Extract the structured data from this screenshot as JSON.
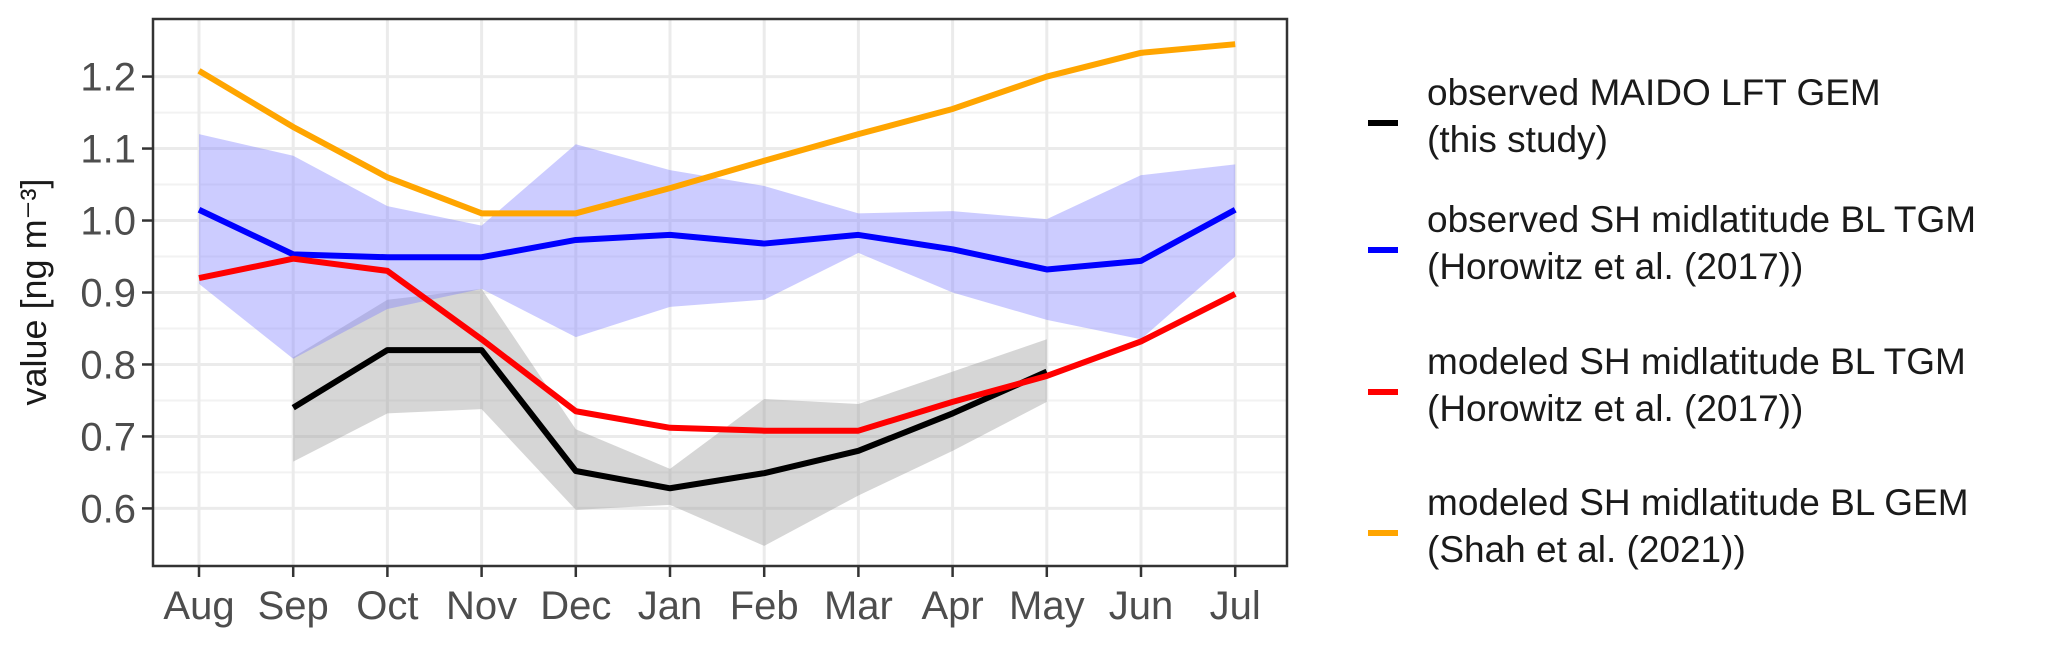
{
  "chart_data": {
    "type": "line",
    "x": [
      "Aug",
      "Sep",
      "Oct",
      "Nov",
      "Dec",
      "Jan",
      "Feb",
      "Mar",
      "Apr",
      "May",
      "Jun",
      "Jul"
    ],
    "ylabel": "value [ng m⁻³]",
    "ylim": [
      0.52,
      1.28
    ],
    "yticks": [
      0.6,
      0.7,
      0.8,
      0.9,
      1.0,
      1.1,
      1.2
    ],
    "ytick_labels": [
      "0.6",
      "0.7",
      "0.8",
      "0.9",
      "1.0",
      "1.1",
      "1.2"
    ],
    "grid": true,
    "legend_position": "right",
    "series": [
      {
        "name": "observed MAIDO LFT GEM",
        "name_line2": "(this study)",
        "color": "#000000",
        "band_color": "#999999",
        "values": [
          null,
          0.74,
          0.82,
          0.82,
          0.652,
          0.628,
          0.649,
          0.68,
          0.732,
          0.79,
          null,
          null
        ],
        "lower": [
          null,
          0.665,
          0.732,
          0.738,
          0.598,
          0.605,
          0.548,
          0.618,
          0.68,
          0.748,
          null,
          null
        ],
        "upper": [
          null,
          0.81,
          0.89,
          0.905,
          0.71,
          0.655,
          0.752,
          0.745,
          0.79,
          0.835,
          null,
          null
        ]
      },
      {
        "name": "observed SH midlatitude BL TGM",
        "name_line2": "(Horowitz et al. (2017))",
        "color": "#0000FF",
        "band_color": "#8080FF",
        "values": [
          1.015,
          0.953,
          0.949,
          0.949,
          0.973,
          0.98,
          0.968,
          0.98,
          0.96,
          0.932,
          0.944,
          1.015
        ],
        "lower": [
          0.912,
          0.808,
          0.877,
          0.905,
          0.838,
          0.88,
          0.89,
          0.955,
          0.9,
          0.862,
          0.835,
          0.95
        ],
        "upper": [
          1.12,
          1.09,
          1.02,
          0.993,
          1.106,
          1.07,
          1.048,
          1.01,
          1.013,
          1.002,
          1.063,
          1.078
        ]
      },
      {
        "name": "modeled SH midlatitude BL TGM",
        "name_line2": "(Horowitz et al. (2017))",
        "color": "#FF0000",
        "values": [
          0.92,
          0.947,
          0.93,
          0.835,
          0.735,
          0.712,
          0.708,
          0.708,
          0.748,
          0.784,
          0.832,
          0.898
        ]
      },
      {
        "name": "modeled SH midlatitude BL GEM",
        "name_line2": "(Shah et al. (2021))",
        "color": "#FFA500",
        "values": [
          1.208,
          1.13,
          1.06,
          1.01,
          1.01,
          1.045,
          1.083,
          1.12,
          1.155,
          1.2,
          1.233,
          1.245
        ]
      }
    ]
  }
}
